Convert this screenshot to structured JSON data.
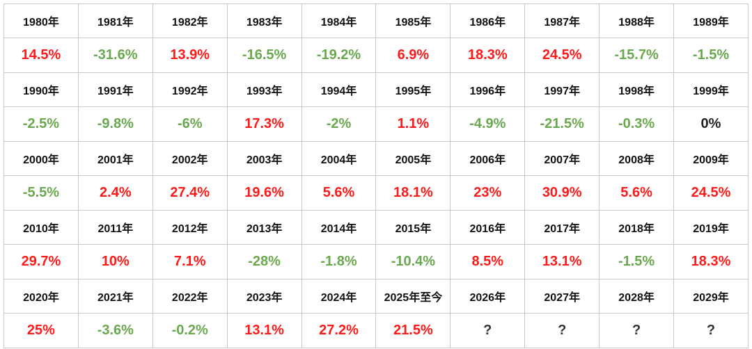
{
  "rows": [
    {
      "years": [
        "1980年",
        "1981年",
        "1982年",
        "1983年",
        "1984年",
        "1985年",
        "1986年",
        "1987年",
        "1988年",
        "1989年"
      ],
      "values": [
        {
          "text": "14.5%",
          "kind": "pos"
        },
        {
          "text": "-31.6%",
          "kind": "neg"
        },
        {
          "text": "13.9%",
          "kind": "pos"
        },
        {
          "text": "-16.5%",
          "kind": "neg"
        },
        {
          "text": "-19.2%",
          "kind": "neg"
        },
        {
          "text": "6.9%",
          "kind": "pos"
        },
        {
          "text": "18.3%",
          "kind": "pos"
        },
        {
          "text": "24.5%",
          "kind": "pos"
        },
        {
          "text": "-15.7%",
          "kind": "neg"
        },
        {
          "text": "-1.5%",
          "kind": "neg"
        }
      ]
    },
    {
      "years": [
        "1990年",
        "1991年",
        "1992年",
        "1993年",
        "1994年",
        "1995年",
        "1996年",
        "1997年",
        "1998年",
        "1999年"
      ],
      "values": [
        {
          "text": "-2.5%",
          "kind": "neg"
        },
        {
          "text": "-9.8%",
          "kind": "neg"
        },
        {
          "text": "-6%",
          "kind": "neg"
        },
        {
          "text": "17.3%",
          "kind": "pos"
        },
        {
          "text": "-2%",
          "kind": "neg"
        },
        {
          "text": "1.1%",
          "kind": "pos"
        },
        {
          "text": "-4.9%",
          "kind": "neg"
        },
        {
          "text": "-21.5%",
          "kind": "neg"
        },
        {
          "text": "-0.3%",
          "kind": "neg"
        },
        {
          "text": "0%",
          "kind": "zero"
        }
      ]
    },
    {
      "years": [
        "2000年",
        "2001年",
        "2002年",
        "2003年",
        "2004年",
        "2005年",
        "2006年",
        "2007年",
        "2008年",
        "2009年"
      ],
      "values": [
        {
          "text": "-5.5%",
          "kind": "neg"
        },
        {
          "text": "2.4%",
          "kind": "pos"
        },
        {
          "text": "27.4%",
          "kind": "pos"
        },
        {
          "text": "19.6%",
          "kind": "pos"
        },
        {
          "text": "5.6%",
          "kind": "pos"
        },
        {
          "text": "18.1%",
          "kind": "pos"
        },
        {
          "text": "23%",
          "kind": "pos"
        },
        {
          "text": "30.9%",
          "kind": "pos"
        },
        {
          "text": "5.6%",
          "kind": "pos"
        },
        {
          "text": "24.5%",
          "kind": "pos"
        }
      ]
    },
    {
      "years": [
        "2010年",
        "2011年",
        "2012年",
        "2013年",
        "2014年",
        "2015年",
        "2016年",
        "2017年",
        "2018年",
        "2019年"
      ],
      "values": [
        {
          "text": "29.7%",
          "kind": "pos"
        },
        {
          "text": "10%",
          "kind": "pos"
        },
        {
          "text": "7.1%",
          "kind": "pos"
        },
        {
          "text": "-28%",
          "kind": "neg"
        },
        {
          "text": "-1.8%",
          "kind": "neg"
        },
        {
          "text": "-10.4%",
          "kind": "neg"
        },
        {
          "text": "8.5%",
          "kind": "pos"
        },
        {
          "text": "13.1%",
          "kind": "pos"
        },
        {
          "text": "-1.5%",
          "kind": "neg"
        },
        {
          "text": "18.3%",
          "kind": "pos"
        }
      ]
    },
    {
      "years": [
        "2020年",
        "2021年",
        "2022年",
        "2023年",
        "2024年",
        "2025年至今",
        "2026年",
        "2027年",
        "2028年",
        "2029年"
      ],
      "values": [
        {
          "text": "25%",
          "kind": "pos"
        },
        {
          "text": "-3.6%",
          "kind": "neg"
        },
        {
          "text": "-0.2%",
          "kind": "neg"
        },
        {
          "text": "13.1%",
          "kind": "pos"
        },
        {
          "text": "27.2%",
          "kind": "pos"
        },
        {
          "text": "21.5%",
          "kind": "pos"
        },
        {
          "text": "?",
          "kind": "unknown"
        },
        {
          "text": "?",
          "kind": "unknown"
        },
        {
          "text": "?",
          "kind": "unknown"
        },
        {
          "text": "?",
          "kind": "unknown"
        }
      ]
    }
  ],
  "colors": {
    "positive": "#ff1a1a",
    "negative": "#6aa84f",
    "neutral": "#222222"
  }
}
